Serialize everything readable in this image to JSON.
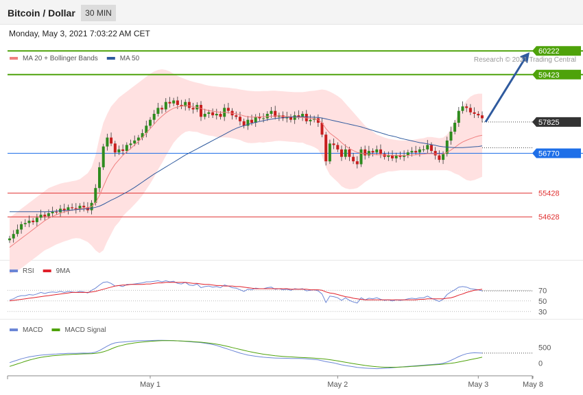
{
  "header": {
    "title": "Bitcoin / Dollar",
    "timeframe": "30 MIN",
    "datetime": "Monday, May 3, 2021 7:03:22 AM CET"
  },
  "colors": {
    "ma20": "#f08080",
    "bollinger_fill": "#ffe1e1",
    "ma50": "#2f5a9e",
    "resistance": "#4ea20a",
    "support": "#e03030",
    "pivot": "#1e6fe8",
    "current": "#333333",
    "arrow": "#2f5a9e",
    "rsi": "#6b86d6",
    "rsi_ma": "#e0202a",
    "macd": "#6b86d6",
    "macd_signal": "#4ea20a"
  },
  "chart_data": [
    {
      "type": "candlestick",
      "legend": [
        {
          "label": "MA 20 + Bollinger Bands",
          "color": "#f08080"
        },
        {
          "label": "MA 50",
          "color": "#2f5a9e"
        }
      ],
      "copyright": "Research © 2021 Trading Central",
      "ylim": [
        53200,
        60550
      ],
      "x_ticks": [
        "May 1",
        "May 2",
        "May 3",
        "May 8"
      ],
      "levels": [
        {
          "value": 60222,
          "label": "60222",
          "kind": "resistance"
        },
        {
          "value": 59423,
          "label": "59423",
          "kind": "resistance"
        },
        {
          "value": 57825,
          "label": "57825",
          "kind": "current"
        },
        {
          "value": 56770,
          "label": "56770",
          "kind": "pivot"
        },
        {
          "value": 55428,
          "label": "55428",
          "kind": "support"
        },
        {
          "value": 54628,
          "label": "54628",
          "kind": "support"
        }
      ],
      "close": [
        53900,
        54050,
        54200,
        54380,
        54420,
        54500,
        54450,
        54600,
        54700,
        54650,
        54750,
        54800,
        54780,
        54900,
        54850,
        54950,
        54920,
        54880,
        55000,
        54950,
        54850,
        55100,
        55600,
        56300,
        57000,
        57300,
        57100,
        56800,
        56900,
        56850,
        57050,
        57100,
        57200,
        57300,
        57450,
        57700,
        57900,
        58100,
        58300,
        58250,
        58500,
        58450,
        58550,
        58400,
        58350,
        58500,
        58300,
        58250,
        58400,
        58000,
        58100,
        58150,
        58050,
        58100,
        58000,
        58300,
        58200,
        58050,
        58000,
        57850,
        57700,
        57900,
        57800,
        58000,
        57950,
        57950,
        58100,
        58200,
        58000,
        58050,
        57950,
        58000,
        57900,
        58050,
        58000,
        58100,
        57850,
        57900,
        57950,
        57800,
        57400,
        56500,
        57100,
        57050,
        56900,
        56650,
        56900,
        56650,
        56500,
        56400,
        56900,
        56700,
        56850,
        56800,
        56900,
        56750,
        56650,
        56700,
        56600,
        56700,
        56650,
        56700,
        56800,
        56850,
        56800,
        56900,
        56900,
        57050,
        56850,
        56700,
        56550,
        56750,
        57200,
        57500,
        57800,
        58200,
        58350,
        58300,
        58150,
        58100,
        58050,
        57950
      ],
      "ma20": [
        53600,
        53700,
        53800,
        53900,
        54000,
        54100,
        54200,
        54300,
        54400,
        54500,
        54580,
        54640,
        54700,
        54750,
        54790,
        54820,
        54860,
        54880,
        54900,
        54920,
        54940,
        54980,
        55100,
        55350,
        55650,
        55950,
        56200,
        56400,
        56550,
        56700,
        56820,
        56930,
        57050,
        57170,
        57300,
        57450,
        57600,
        57750,
        57900,
        58020,
        58130,
        58220,
        58290,
        58330,
        58360,
        58380,
        58370,
        58340,
        58320,
        58280,
        58240,
        58210,
        58190,
        58170,
        58150,
        58150,
        58140,
        58120,
        58100,
        58070,
        58030,
        58000,
        57990,
        57990,
        58000,
        58000,
        58010,
        58020,
        58030,
        58030,
        58020,
        58010,
        58000,
        57990,
        57980,
        57980,
        57960,
        57950,
        57930,
        57900,
        57800,
        57600,
        57450,
        57350,
        57250,
        57130,
        57020,
        56930,
        56860,
        56800,
        56770,
        56750,
        56740,
        56730,
        56720,
        56720,
        56710,
        56710,
        56700,
        56700,
        56700,
        56700,
        56700,
        56710,
        56720,
        56730,
        56740,
        56760,
        56760,
        56750,
        56740,
        56750,
        56800,
        56880,
        56970,
        57070,
        57150,
        57210,
        57260,
        57310,
        57350,
        57380
      ],
      "bb_upper": [
        54600,
        54700,
        54800,
        54900,
        55000,
        55100,
        55200,
        55300,
        55400,
        55500,
        55600,
        55650,
        55700,
        55750,
        55780,
        55800,
        55830,
        55850,
        55900,
        56000,
        56100,
        56300,
        56700,
        57300,
        57800,
        58100,
        58350,
        58500,
        58650,
        58750,
        58850,
        58950,
        59050,
        59150,
        59250,
        59350,
        59450,
        59530,
        59580,
        59600,
        59580,
        59530,
        59450,
        59380,
        59320,
        59270,
        59220,
        59180,
        59150,
        59120,
        59080,
        59050,
        59030,
        59020,
        59000,
        58990,
        58980,
        58960,
        58950,
        58920,
        58900,
        58880,
        58870,
        58860,
        58860,
        58870,
        58870,
        58880,
        58880,
        58870,
        58860,
        58850,
        58840,
        58830,
        58830,
        58830,
        58850,
        58870,
        58880,
        58900,
        58920,
        58900,
        58850,
        58780,
        58700,
        58600,
        58450,
        58300,
        58150,
        58000,
        57850,
        57700,
        57600,
        57500,
        57400,
        57350,
        57300,
        57260,
        57240,
        57220,
        57200,
        57200,
        57200,
        57220,
        57240,
        57260,
        57280,
        57320,
        57320,
        57300,
        57280,
        57300,
        57400,
        57600,
        57850,
        58100,
        58350,
        58550,
        58680,
        58750,
        58780,
        58780
      ],
      "bb_lower": [
        52700,
        52750,
        52800,
        52900,
        53000,
        53100,
        53200,
        53300,
        53400,
        53500,
        53560,
        53630,
        53700,
        53750,
        53800,
        53840,
        53890,
        53910,
        53900,
        53840,
        53780,
        53660,
        53500,
        53400,
        53500,
        53800,
        54050,
        54300,
        54450,
        54650,
        54790,
        54910,
        55050,
        55190,
        55350,
        55550,
        55750,
        55970,
        56220,
        56440,
        56680,
        56910,
        57130,
        57280,
        57400,
        57490,
        57520,
        57500,
        57490,
        57440,
        57400,
        57370,
        57350,
        57320,
        57300,
        57310,
        57300,
        57280,
        57250,
        57220,
        57160,
        57120,
        57110,
        57120,
        57140,
        57130,
        57150,
        57160,
        57180,
        57190,
        57180,
        57170,
        57160,
        57150,
        57130,
        57130,
        57070,
        57030,
        56980,
        56900,
        56680,
        56300,
        56050,
        55920,
        55800,
        55660,
        55590,
        55560,
        55570,
        55600,
        55690,
        55800,
        55880,
        55960,
        56040,
        56090,
        56120,
        56160,
        56160,
        56180,
        56200,
        56200,
        56200,
        56200,
        56200,
        56200,
        56200,
        56200,
        56200,
        56200,
        56200,
        56200,
        56200,
        56160,
        56090,
        56040,
        55950,
        55870,
        55840,
        55870,
        55920,
        55980
      ],
      "ma50": [
        54800,
        54800,
        54800,
        54800,
        54800,
        54800,
        54800,
        54800,
        54800,
        54800,
        54800,
        54810,
        54820,
        54830,
        54840,
        54850,
        54860,
        54870,
        54880,
        54890,
        54900,
        54920,
        54950,
        54990,
        55050,
        55120,
        55190,
        55250,
        55320,
        55390,
        55460,
        55540,
        55620,
        55710,
        55800,
        55890,
        55980,
        56070,
        56150,
        56230,
        56310,
        56390,
        56470,
        56550,
        56630,
        56710,
        56780,
        56850,
        56920,
        56990,
        57060,
        57130,
        57200,
        57270,
        57340,
        57410,
        57480,
        57550,
        57610,
        57660,
        57700,
        57740,
        57780,
        57810,
        57840,
        57870,
        57900,
        57920,
        57940,
        57960,
        57970,
        57980,
        57990,
        58000,
        58000,
        58000,
        57995,
        57990,
        57985,
        57980,
        57960,
        57930,
        57900,
        57870,
        57840,
        57810,
        57780,
        57750,
        57720,
        57690,
        57660,
        57620,
        57580,
        57540,
        57500,
        57460,
        57420,
        57380,
        57350,
        57320,
        57280,
        57250,
        57220,
        57190,
        57160,
        57130,
        57110,
        57090,
        57060,
        57040,
        57010,
        56990,
        56980,
        56970,
        56960,
        56960,
        56960,
        56970,
        56980,
        56990,
        57000,
        57020
      ]
    },
    {
      "type": "line",
      "legend": [
        {
          "label": "RSI",
          "color": "#6b86d6"
        },
        {
          "label": "9MA",
          "color": "#e0202a"
        }
      ],
      "y_ticks": [
        "70",
        "50",
        "30"
      ],
      "ylim": [
        20,
        95
      ],
      "series": [
        {
          "name": "RSI",
          "values": [
            52,
            54,
            58,
            60,
            60,
            62,
            61,
            63,
            66,
            64,
            66,
            67,
            66,
            68,
            66,
            68,
            67,
            66,
            68,
            67,
            65,
            70,
            74,
            80,
            85,
            86,
            83,
            78,
            79,
            77,
            81,
            81,
            82,
            83,
            84,
            86,
            86,
            87,
            88,
            86,
            88,
            86,
            87,
            83,
            82,
            85,
            80,
            79,
            82,
            75,
            77,
            78,
            76,
            77,
            75,
            80,
            78,
            75,
            74,
            71,
            68,
            72,
            71,
            74,
            73,
            73,
            75,
            76,
            72,
            73,
            71,
            72,
            70,
            73,
            72,
            73,
            69,
            70,
            71,
            69,
            63,
            47,
            59,
            58,
            56,
            51,
            56,
            51,
            48,
            46,
            56,
            52,
            55,
            54,
            56,
            53,
            51,
            52,
            50,
            52,
            51,
            52,
            54,
            55,
            54,
            56,
            56,
            59,
            55,
            52,
            49,
            53,
            62,
            67,
            71,
            76,
            77,
            76,
            73,
            72,
            71,
            69
          ]
        },
        {
          "name": "9MA",
          "values": [
            50,
            51,
            52,
            53,
            54,
            55,
            56,
            57,
            58,
            59,
            60,
            61,
            62,
            63,
            64,
            65,
            66,
            66,
            66,
            66,
            66,
            67,
            68,
            70,
            72,
            74,
            76,
            78,
            79,
            80,
            80,
            81,
            81,
            81,
            81,
            82,
            82,
            83,
            84,
            84,
            85,
            85,
            85,
            85,
            85,
            85,
            84,
            83,
            83,
            82,
            81,
            81,
            80,
            79,
            79,
            78,
            78,
            78,
            77,
            77,
            76,
            75,
            74,
            73,
            73,
            73,
            73,
            73,
            73,
            73,
            73,
            73,
            72,
            72,
            72,
            72,
            72,
            71,
            71,
            71,
            70,
            67,
            65,
            64,
            62,
            60,
            58,
            57,
            55,
            54,
            53,
            52,
            52,
            52,
            52,
            52,
            52,
            52,
            52,
            52,
            52,
            52,
            52,
            52,
            52,
            53,
            53,
            54,
            54,
            54,
            54,
            54,
            55,
            56,
            58,
            61,
            63,
            66,
            68,
            70,
            71,
            72
          ]
        }
      ]
    },
    {
      "type": "line",
      "legend": [
        {
          "label": "MACD",
          "color": "#6b86d6"
        },
        {
          "label": "MACD Signal",
          "color": "#4ea20a"
        }
      ],
      "y_ticks": [
        "500",
        "0"
      ],
      "ylim": [
        -330,
        900
      ],
      "series": [
        {
          "name": "MACD",
          "values": [
            20,
            60,
            100,
            140,
            170,
            200,
            220,
            240,
            255,
            265,
            275,
            285,
            290,
            300,
            305,
            310,
            312,
            314,
            318,
            320,
            318,
            325,
            350,
            400,
            470,
            540,
            600,
            640,
            660,
            670,
            680,
            690,
            700,
            705,
            710,
            712,
            715,
            718,
            720,
            720,
            718,
            716,
            712,
            705,
            698,
            690,
            680,
            670,
            660,
            650,
            630,
            610,
            590,
            560,
            520,
            480,
            440,
            400,
            360,
            320,
            290,
            260,
            240,
            220,
            205,
            190,
            180,
            170,
            165,
            160,
            158,
            156,
            152,
            150,
            148,
            146,
            140,
            130,
            118,
            105,
            80,
            50,
            30,
            10,
            -20,
            -50,
            -70,
            -90,
            -110,
            -130,
            -140,
            -150,
            -160,
            -165,
            -170,
            -165,
            -158,
            -150,
            -140,
            -130,
            -120,
            -110,
            -100,
            -90,
            -80,
            -70,
            -60,
            -50,
            -40,
            -30,
            -20,
            0,
            40,
            90,
            150,
            210,
            260,
            300,
            320,
            330,
            325,
            320
          ]
        },
        {
          "name": "MACD Signal",
          "values": [
            -100,
            -60,
            -20,
            20,
            60,
            100,
            130,
            160,
            185,
            205,
            220,
            235,
            245,
            255,
            265,
            272,
            278,
            284,
            290,
            295,
            298,
            302,
            310,
            330,
            360,
            400,
            450,
            500,
            540,
            570,
            600,
            620,
            640,
            655,
            668,
            680,
            690,
            698,
            705,
            710,
            712,
            712,
            710,
            705,
            700,
            695,
            688,
            680,
            672,
            662,
            650,
            636,
            620,
            600,
            578,
            552,
            525,
            495,
            465,
            435,
            405,
            378,
            352,
            328,
            306,
            286,
            268,
            252,
            238,
            226,
            216,
            208,
            200,
            193,
            186,
            180,
            174,
            168,
            160,
            152,
            142,
            128,
            112,
            94,
            74,
            52,
            30,
            10,
            -10,
            -30,
            -50,
            -68,
            -84,
            -98,
            -110,
            -118,
            -124,
            -126,
            -126,
            -124,
            -120,
            -115,
            -108,
            -100,
            -92,
            -83,
            -74,
            -65,
            -56,
            -47,
            -38,
            -28,
            -16,
            -2,
            16,
            38,
            62,
            88,
            115,
            140,
            165,
            190
          ]
        }
      ]
    }
  ]
}
